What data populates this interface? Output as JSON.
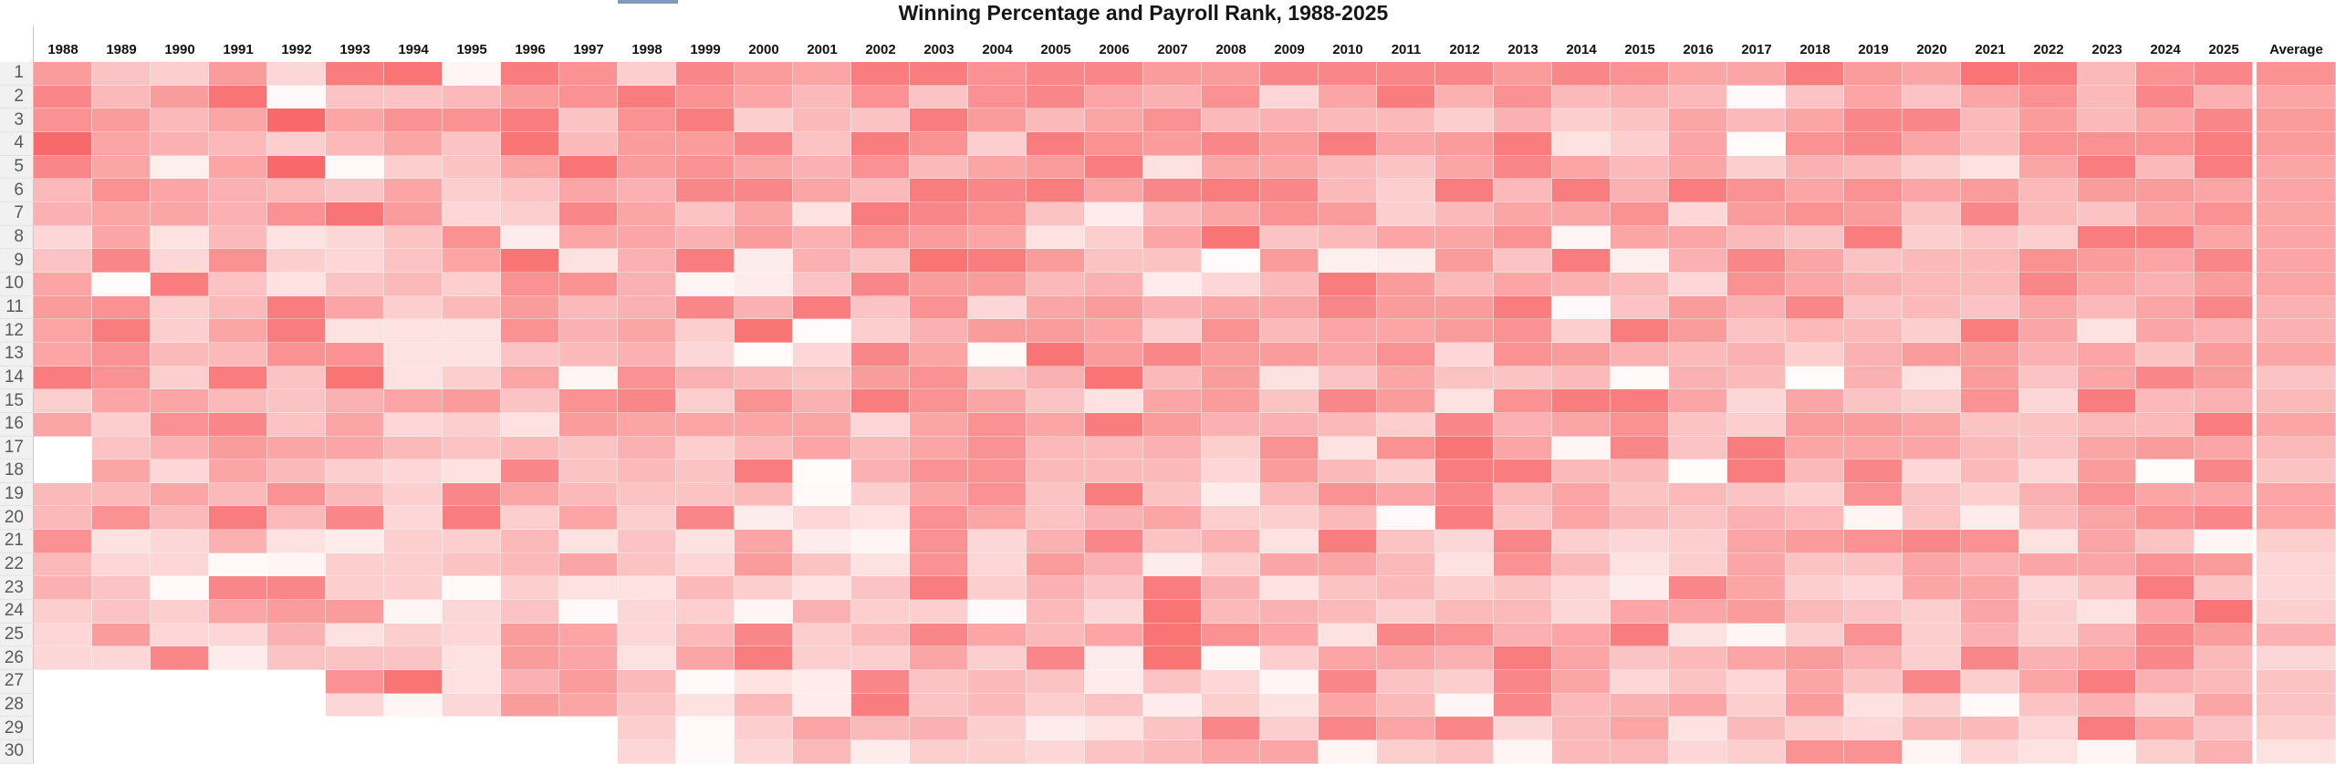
{
  "page": {
    "window_title": "Winning Percentage and Payroll Rank, 1988-2025"
  },
  "ui": {
    "accent_bar_color": "#7f9bb9",
    "gutter_bg": "#f1f1f1",
    "gutter_text_color": "#595959",
    "grid_line_color": "#c9c9c9",
    "title_color": "#161616"
  },
  "chart_data": {
    "type": "heatmap",
    "title": "Winning Percentage and Payroll Rank, 1988-2025",
    "x_categories": [
      "1988",
      "1989",
      "1990",
      "1991",
      "1992",
      "1993",
      "1994",
      "1995",
      "1996",
      "1997",
      "1998",
      "1999",
      "2000",
      "2001",
      "2002",
      "2003",
      "2004",
      "2005",
      "2006",
      "2007",
      "2008",
      "2009",
      "2010",
      "2011",
      "2012",
      "2013",
      "2014",
      "2015",
      "2016",
      "2017",
      "2018",
      "2019",
      "2020",
      "2021",
      "2022",
      "2023",
      "2024",
      "2025",
      "Average"
    ],
    "y_categories": [
      "1",
      "2",
      "3",
      "4",
      "5",
      "6",
      "7",
      "8",
      "9",
      "10",
      "11",
      "12",
      "13",
      "14",
      "15",
      "16",
      "17",
      "18",
      "19",
      "20",
      "21",
      "22",
      "23",
      "24",
      "25",
      "26",
      "27",
      "28",
      "29",
      "30"
    ],
    "colorscale": {
      "min_color": "#ffffff",
      "max_color": "#f8696b",
      "note": "values are normalized color intensities 0-1 read from the pixels; null = blank cell"
    },
    "legend_position": "none",
    "grid": "off",
    "values": [
      [
        0.67,
        0.4,
        0.33,
        0.67,
        0.27,
        0.87,
        0.93,
        0.07,
        0.87,
        0.73,
        0.33,
        0.8,
        0.67,
        0.6,
        0.87,
        0.87,
        0.73,
        0.8,
        0.8,
        0.67,
        0.67,
        0.8,
        0.8,
        0.8,
        0.8,
        0.67,
        0.8,
        0.73,
        0.6,
        0.6,
        0.87,
        0.67,
        0.6,
        0.93,
        0.87,
        0.47,
        0.73,
        0.8,
        0.73
      ],
      [
        0.8,
        0.47,
        0.67,
        0.93,
        0.04,
        0.4,
        0.4,
        0.47,
        0.67,
        0.73,
        0.87,
        0.73,
        0.6,
        0.47,
        0.73,
        0.4,
        0.73,
        0.8,
        0.6,
        0.53,
        0.73,
        0.27,
        0.6,
        0.87,
        0.53,
        0.73,
        0.47,
        0.53,
        0.47,
        0.04,
        0.4,
        0.6,
        0.4,
        0.6,
        0.73,
        0.47,
        0.8,
        0.53,
        0.6
      ],
      [
        0.73,
        0.67,
        0.47,
        0.6,
        1.0,
        0.6,
        0.73,
        0.73,
        0.87,
        0.4,
        0.73,
        0.87,
        0.33,
        0.47,
        0.4,
        0.87,
        0.67,
        0.47,
        0.6,
        0.73,
        0.47,
        0.53,
        0.47,
        0.47,
        0.33,
        0.53,
        0.33,
        0.4,
        0.6,
        0.47,
        0.6,
        0.8,
        0.8,
        0.47,
        0.67,
        0.47,
        0.6,
        0.8,
        0.67
      ],
      [
        1.0,
        0.6,
        0.53,
        0.47,
        0.33,
        0.47,
        0.6,
        0.4,
        0.93,
        0.47,
        0.67,
        0.67,
        0.8,
        0.4,
        0.87,
        0.73,
        0.33,
        0.87,
        0.73,
        0.67,
        0.8,
        0.67,
        0.87,
        0.6,
        0.67,
        0.87,
        0.2,
        0.33,
        0.6,
        0.03,
        0.73,
        0.8,
        0.6,
        0.47,
        0.73,
        0.73,
        0.73,
        0.87,
        0.67
      ],
      [
        0.8,
        0.6,
        0.11,
        0.6,
        1.0,
        0.04,
        0.33,
        0.4,
        0.6,
        0.93,
        0.67,
        0.73,
        0.6,
        0.53,
        0.73,
        0.47,
        0.6,
        0.67,
        0.87,
        0.2,
        0.6,
        0.6,
        0.47,
        0.4,
        0.6,
        0.8,
        0.6,
        0.47,
        0.6,
        0.33,
        0.53,
        0.47,
        0.33,
        0.2,
        0.6,
        0.87,
        0.47,
        0.87,
        0.6
      ],
      [
        0.47,
        0.73,
        0.6,
        0.53,
        0.47,
        0.4,
        0.6,
        0.33,
        0.4,
        0.6,
        0.53,
        0.8,
        0.8,
        0.6,
        0.47,
        0.87,
        0.8,
        0.87,
        0.6,
        0.8,
        0.87,
        0.8,
        0.47,
        0.33,
        0.87,
        0.47,
        0.87,
        0.53,
        0.87,
        0.73,
        0.6,
        0.73,
        0.6,
        0.67,
        0.47,
        0.67,
        0.67,
        0.6,
        0.6
      ],
      [
        0.53,
        0.6,
        0.6,
        0.53,
        0.73,
        0.93,
        0.67,
        0.27,
        0.33,
        0.8,
        0.6,
        0.4,
        0.6,
        0.2,
        0.87,
        0.8,
        0.73,
        0.4,
        0.13,
        0.47,
        0.6,
        0.73,
        0.67,
        0.33,
        0.47,
        0.6,
        0.6,
        0.73,
        0.27,
        0.67,
        0.73,
        0.67,
        0.4,
        0.8,
        0.47,
        0.4,
        0.6,
        0.73,
        0.6
      ],
      [
        0.27,
        0.6,
        0.2,
        0.47,
        0.2,
        0.27,
        0.4,
        0.73,
        0.13,
        0.6,
        0.6,
        0.53,
        0.67,
        0.53,
        0.73,
        0.67,
        0.6,
        0.2,
        0.33,
        0.6,
        0.93,
        0.4,
        0.47,
        0.6,
        0.6,
        0.73,
        0.07,
        0.6,
        0.6,
        0.47,
        0.4,
        0.87,
        0.33,
        0.4,
        0.33,
        0.87,
        0.87,
        0.6,
        0.6
      ],
      [
        0.4,
        0.8,
        0.27,
        0.73,
        0.33,
        0.27,
        0.4,
        0.6,
        0.93,
        0.2,
        0.53,
        0.87,
        0.13,
        0.53,
        0.4,
        0.93,
        0.87,
        0.67,
        0.4,
        0.4,
        0.03,
        0.67,
        0.11,
        0.13,
        0.67,
        0.4,
        0.87,
        0.11,
        0.53,
        0.8,
        0.6,
        0.4,
        0.47,
        0.47,
        0.73,
        0.67,
        0.6,
        0.8,
        0.6
      ],
      [
        0.6,
        0.03,
        0.87,
        0.4,
        0.2,
        0.4,
        0.47,
        0.33,
        0.73,
        0.73,
        0.53,
        0.07,
        0.13,
        0.4,
        0.8,
        0.67,
        0.67,
        0.47,
        0.53,
        0.13,
        0.27,
        0.47,
        0.87,
        0.67,
        0.47,
        0.6,
        0.53,
        0.47,
        0.27,
        0.73,
        0.6,
        0.53,
        0.47,
        0.47,
        0.8,
        0.6,
        0.53,
        0.67,
        0.6
      ],
      [
        0.67,
        0.73,
        0.33,
        0.47,
        0.87,
        0.6,
        0.33,
        0.47,
        0.67,
        0.47,
        0.53,
        0.8,
        0.53,
        0.87,
        0.4,
        0.73,
        0.27,
        0.6,
        0.67,
        0.53,
        0.6,
        0.6,
        0.8,
        0.67,
        0.67,
        0.87,
        0.04,
        0.4,
        0.67,
        0.53,
        0.8,
        0.4,
        0.47,
        0.4,
        0.6,
        0.47,
        0.6,
        0.8,
        0.53
      ],
      [
        0.6,
        0.87,
        0.33,
        0.6,
        0.87,
        0.2,
        0.2,
        0.2,
        0.73,
        0.53,
        0.6,
        0.33,
        0.93,
        0.03,
        0.33,
        0.53,
        0.67,
        0.67,
        0.6,
        0.33,
        0.73,
        0.47,
        0.6,
        0.6,
        0.67,
        0.73,
        0.33,
        0.87,
        0.67,
        0.4,
        0.47,
        0.47,
        0.33,
        0.87,
        0.6,
        0.2,
        0.6,
        0.53,
        0.53
      ],
      [
        0.6,
        0.73,
        0.47,
        0.47,
        0.73,
        0.73,
        0.2,
        0.2,
        0.4,
        0.47,
        0.53,
        0.27,
        0.03,
        0.27,
        0.8,
        0.6,
        0.04,
        0.93,
        0.67,
        0.8,
        0.67,
        0.67,
        0.6,
        0.73,
        0.27,
        0.73,
        0.67,
        0.53,
        0.47,
        0.53,
        0.33,
        0.53,
        0.67,
        0.67,
        0.53,
        0.6,
        0.4,
        0.67,
        0.6
      ],
      [
        0.87,
        0.73,
        0.33,
        0.87,
        0.4,
        0.93,
        0.2,
        0.33,
        0.6,
        0.07,
        0.73,
        0.53,
        0.47,
        0.4,
        0.67,
        0.73,
        0.4,
        0.53,
        0.93,
        0.47,
        0.67,
        0.2,
        0.4,
        0.6,
        0.4,
        0.4,
        0.47,
        0.04,
        0.53,
        0.47,
        0.03,
        0.53,
        0.2,
        0.67,
        0.4,
        0.6,
        0.8,
        0.67,
        0.4
      ],
      [
        0.33,
        0.6,
        0.6,
        0.47,
        0.4,
        0.53,
        0.6,
        0.67,
        0.4,
        0.73,
        0.8,
        0.33,
        0.73,
        0.53,
        0.87,
        0.73,
        0.6,
        0.4,
        0.2,
        0.6,
        0.67,
        0.4,
        0.8,
        0.67,
        0.2,
        0.73,
        0.87,
        0.87,
        0.6,
        0.27,
        0.6,
        0.4,
        0.33,
        0.73,
        0.27,
        0.87,
        0.47,
        0.53,
        0.47
      ],
      [
        0.6,
        0.33,
        0.73,
        0.8,
        0.4,
        0.6,
        0.27,
        0.33,
        0.2,
        0.67,
        0.6,
        0.6,
        0.6,
        0.6,
        0.27,
        0.6,
        0.73,
        0.6,
        0.87,
        0.67,
        0.53,
        0.53,
        0.47,
        0.33,
        0.8,
        0.53,
        0.6,
        0.73,
        0.4,
        0.33,
        0.67,
        0.67,
        0.6,
        0.4,
        0.4,
        0.47,
        0.47,
        0.87,
        0.6
      ],
      [
        0.0,
        0.4,
        0.53,
        0.67,
        0.6,
        0.6,
        0.47,
        0.4,
        0.47,
        0.4,
        0.53,
        0.33,
        0.47,
        0.6,
        0.47,
        0.6,
        0.73,
        0.47,
        0.47,
        0.53,
        0.33,
        0.73,
        0.2,
        0.73,
        0.93,
        0.6,
        0.07,
        0.8,
        0.4,
        0.87,
        0.6,
        0.6,
        0.6,
        0.47,
        0.4,
        0.6,
        0.67,
        0.6,
        0.47
      ],
      [
        0.0,
        0.6,
        0.27,
        0.6,
        0.47,
        0.33,
        0.27,
        0.2,
        0.8,
        0.4,
        0.47,
        0.4,
        0.87,
        0.03,
        0.53,
        0.73,
        0.73,
        0.47,
        0.47,
        0.47,
        0.27,
        0.67,
        0.47,
        0.33,
        0.87,
        0.87,
        0.47,
        0.47,
        0.03,
        0.87,
        0.47,
        0.8,
        0.27,
        0.47,
        0.27,
        0.67,
        0.03,
        0.8,
        0.4
      ],
      [
        0.47,
        0.47,
        0.6,
        0.47,
        0.73,
        0.47,
        0.33,
        0.8,
        0.6,
        0.47,
        0.4,
        0.4,
        0.47,
        0.04,
        0.33,
        0.6,
        0.73,
        0.4,
        0.87,
        0.4,
        0.13,
        0.47,
        0.73,
        0.6,
        0.8,
        0.47,
        0.6,
        0.4,
        0.47,
        0.4,
        0.33,
        0.73,
        0.4,
        0.33,
        0.53,
        0.73,
        0.6,
        0.6,
        0.6
      ],
      [
        0.47,
        0.73,
        0.47,
        0.87,
        0.47,
        0.8,
        0.27,
        0.87,
        0.33,
        0.6,
        0.33,
        0.8,
        0.13,
        0.27,
        0.2,
        0.73,
        0.6,
        0.4,
        0.53,
        0.6,
        0.33,
        0.33,
        0.47,
        0.04,
        0.87,
        0.4,
        0.6,
        0.47,
        0.4,
        0.53,
        0.47,
        0.07,
        0.4,
        0.13,
        0.47,
        0.6,
        0.73,
        0.8,
        0.6
      ],
      [
        0.73,
        0.2,
        0.27,
        0.53,
        0.2,
        0.13,
        0.33,
        0.33,
        0.47,
        0.2,
        0.4,
        0.2,
        0.6,
        0.13,
        0.07,
        0.73,
        0.27,
        0.53,
        0.8,
        0.4,
        0.53,
        0.2,
        0.87,
        0.4,
        0.27,
        0.8,
        0.33,
        0.27,
        0.33,
        0.6,
        0.67,
        0.73,
        0.8,
        0.73,
        0.2,
        0.6,
        0.4,
        0.07,
        0.33
      ],
      [
        0.47,
        0.27,
        0.27,
        0.04,
        0.07,
        0.33,
        0.33,
        0.4,
        0.47,
        0.6,
        0.4,
        0.27,
        0.67,
        0.4,
        0.2,
        0.73,
        0.27,
        0.67,
        0.53,
        0.13,
        0.33,
        0.6,
        0.6,
        0.47,
        0.2,
        0.73,
        0.47,
        0.2,
        0.33,
        0.6,
        0.4,
        0.4,
        0.6,
        0.53,
        0.6,
        0.6,
        0.73,
        0.67,
        0.27
      ],
      [
        0.53,
        0.4,
        0.04,
        0.8,
        0.8,
        0.33,
        0.33,
        0.04,
        0.33,
        0.2,
        0.2,
        0.47,
        0.33,
        0.2,
        0.4,
        0.87,
        0.33,
        0.53,
        0.4,
        0.87,
        0.53,
        0.2,
        0.4,
        0.47,
        0.33,
        0.4,
        0.27,
        0.13,
        0.8,
        0.6,
        0.33,
        0.27,
        0.6,
        0.6,
        0.27,
        0.4,
        0.87,
        0.4,
        0.27
      ],
      [
        0.33,
        0.4,
        0.33,
        0.6,
        0.67,
        0.67,
        0.07,
        0.27,
        0.4,
        0.04,
        0.27,
        0.33,
        0.07,
        0.53,
        0.33,
        0.33,
        0.04,
        0.47,
        0.27,
        0.93,
        0.47,
        0.53,
        0.47,
        0.33,
        0.47,
        0.47,
        0.27,
        0.6,
        0.6,
        0.67,
        0.47,
        0.4,
        0.33,
        0.6,
        0.33,
        0.2,
        0.6,
        0.93,
        0.33
      ],
      [
        0.27,
        0.67,
        0.27,
        0.27,
        0.53,
        0.2,
        0.33,
        0.27,
        0.67,
        0.6,
        0.27,
        0.47,
        0.8,
        0.33,
        0.47,
        0.8,
        0.6,
        0.47,
        0.6,
        0.93,
        0.73,
        0.6,
        0.2,
        0.8,
        0.73,
        0.53,
        0.6,
        0.87,
        0.2,
        0.07,
        0.33,
        0.73,
        0.33,
        0.53,
        0.33,
        0.53,
        0.8,
        0.67,
        0.53
      ],
      [
        0.27,
        0.27,
        0.8,
        0.13,
        0.4,
        0.4,
        0.4,
        0.2,
        0.67,
        0.6,
        0.2,
        0.6,
        0.87,
        0.33,
        0.33,
        0.6,
        0.33,
        0.8,
        0.13,
        0.93,
        0.04,
        0.33,
        0.6,
        0.6,
        0.53,
        0.87,
        0.6,
        0.4,
        0.47,
        0.6,
        0.67,
        0.53,
        0.33,
        0.8,
        0.53,
        0.6,
        0.8,
        0.47,
        0.27
      ],
      [
        null,
        null,
        null,
        null,
        null,
        0.73,
        0.93,
        0.2,
        0.53,
        0.67,
        0.47,
        0.04,
        0.2,
        0.13,
        0.8,
        0.4,
        0.47,
        0.4,
        0.13,
        0.4,
        0.27,
        0.07,
        0.8,
        0.4,
        0.33,
        0.8,
        0.6,
        0.27,
        0.4,
        0.27,
        0.6,
        0.4,
        0.8,
        0.33,
        0.6,
        0.87,
        0.53,
        0.47,
        0.4
      ],
      [
        null,
        null,
        null,
        null,
        null,
        0.27,
        0.07,
        0.27,
        0.67,
        0.6,
        0.4,
        0.2,
        0.47,
        0.13,
        0.87,
        0.4,
        0.47,
        0.33,
        0.4,
        0.13,
        0.33,
        0.2,
        0.6,
        0.47,
        0.07,
        0.8,
        0.47,
        0.53,
        0.6,
        0.33,
        0.67,
        0.2,
        0.33,
        0.04,
        0.4,
        0.53,
        0.33,
        0.6,
        0.4
      ],
      [
        null,
        null,
        null,
        null,
        null,
        null,
        null,
        null,
        null,
        null,
        0.33,
        0.04,
        0.33,
        0.6,
        0.47,
        0.53,
        0.33,
        0.13,
        0.2,
        0.4,
        0.8,
        0.33,
        0.8,
        0.6,
        0.8,
        0.27,
        0.47,
        0.6,
        0.2,
        0.47,
        0.33,
        0.27,
        0.47,
        0.47,
        0.27,
        0.87,
        0.6,
        0.4,
        0.33
      ],
      [
        null,
        null,
        null,
        null,
        null,
        null,
        null,
        null,
        null,
        null,
        0.27,
        0.04,
        0.27,
        0.47,
        0.13,
        0.33,
        0.33,
        0.27,
        0.4,
        0.47,
        0.6,
        0.6,
        0.07,
        0.33,
        0.4,
        0.07,
        0.47,
        0.47,
        0.27,
        0.33,
        0.73,
        0.73,
        0.07,
        0.27,
        0.2,
        0.07,
        0.33,
        0.53,
        0.2
      ]
    ]
  }
}
